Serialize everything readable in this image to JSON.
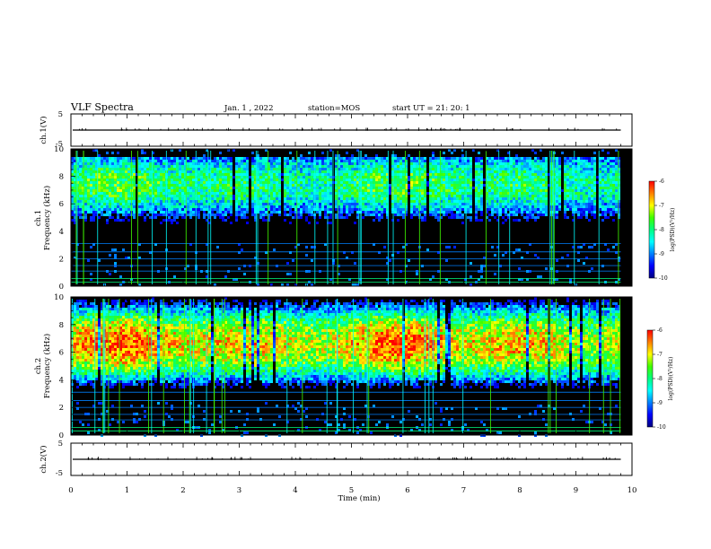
{
  "header": {
    "title": "VLF Spectra",
    "date": "Jan. 1 , 2022",
    "station": "station=MOS",
    "start_ut": "start UT =  21: 20: 1"
  },
  "chart_data": [
    {
      "type": "line",
      "panel": "ch1-voltage",
      "ylabel": "ch.1(V)",
      "xlim": [
        0,
        10
      ],
      "ylim": [
        -5,
        5
      ],
      "yticks": [
        "5",
        "-5"
      ],
      "baseline": 0,
      "description_values": "flat trace near 0 V with small spikes"
    },
    {
      "type": "heatmap",
      "panel": "ch1-spectrogram",
      "ylabel_top": "ch.1",
      "ylabel": "Frequency (kHz)",
      "xlim": [
        0,
        10
      ],
      "ylim": [
        0,
        10
      ],
      "yticks": [
        "0",
        "2",
        "4",
        "6",
        "8",
        "10"
      ],
      "data_end_min": 9.8,
      "band_low_khz": 3.2,
      "band_high_khz": 9.5,
      "core_khz": 7.4,
      "intensity": 0.55,
      "colorbar": {
        "label": "log(PSD)(V²/Hz)",
        "ticks": [
          "-6",
          "-7",
          "-8",
          "-9",
          "-10"
        ],
        "range": [
          -10,
          -6
        ]
      }
    },
    {
      "type": "heatmap",
      "panel": "ch2-spectrogram",
      "ylabel_top": "ch.2",
      "ylabel": "Frequency (kHz)",
      "xlim": [
        0,
        10
      ],
      "ylim": [
        0,
        10
      ],
      "yticks": [
        "0",
        "2",
        "4",
        "6",
        "8",
        "10"
      ],
      "data_end_min": 9.8,
      "band_low_khz": 2.5,
      "band_high_khz": 10.0,
      "core_khz": 6.6,
      "intensity": 0.85,
      "colorbar": {
        "label": "log(PSD)(V²/Hz)",
        "ticks": [
          "-6",
          "-7",
          "-8",
          "-9",
          "-10"
        ],
        "range": [
          -10,
          -6
        ]
      }
    },
    {
      "type": "line",
      "panel": "ch2-voltage",
      "ylabel": "ch.2(V)",
      "xlim": [
        0,
        10
      ],
      "ylim": [
        -5,
        5
      ],
      "yticks": [
        "5",
        "-5"
      ],
      "baseline": 0,
      "description_values": "flat trace near 0 V with small spikes"
    }
  ],
  "xaxis": {
    "label": "Time (min)",
    "ticks": [
      "0",
      "1",
      "2",
      "3",
      "4",
      "5",
      "6",
      "7",
      "8",
      "9",
      "10"
    ]
  },
  "colors": {
    "colormap": [
      "#000080",
      "#0000ff",
      "#0080ff",
      "#00ffff",
      "#00ff80",
      "#40ff00",
      "#ffff00",
      "#ff8000",
      "#ff0000",
      "#ffffff"
    ],
    "background": "#000000",
    "axes": "#000000"
  }
}
